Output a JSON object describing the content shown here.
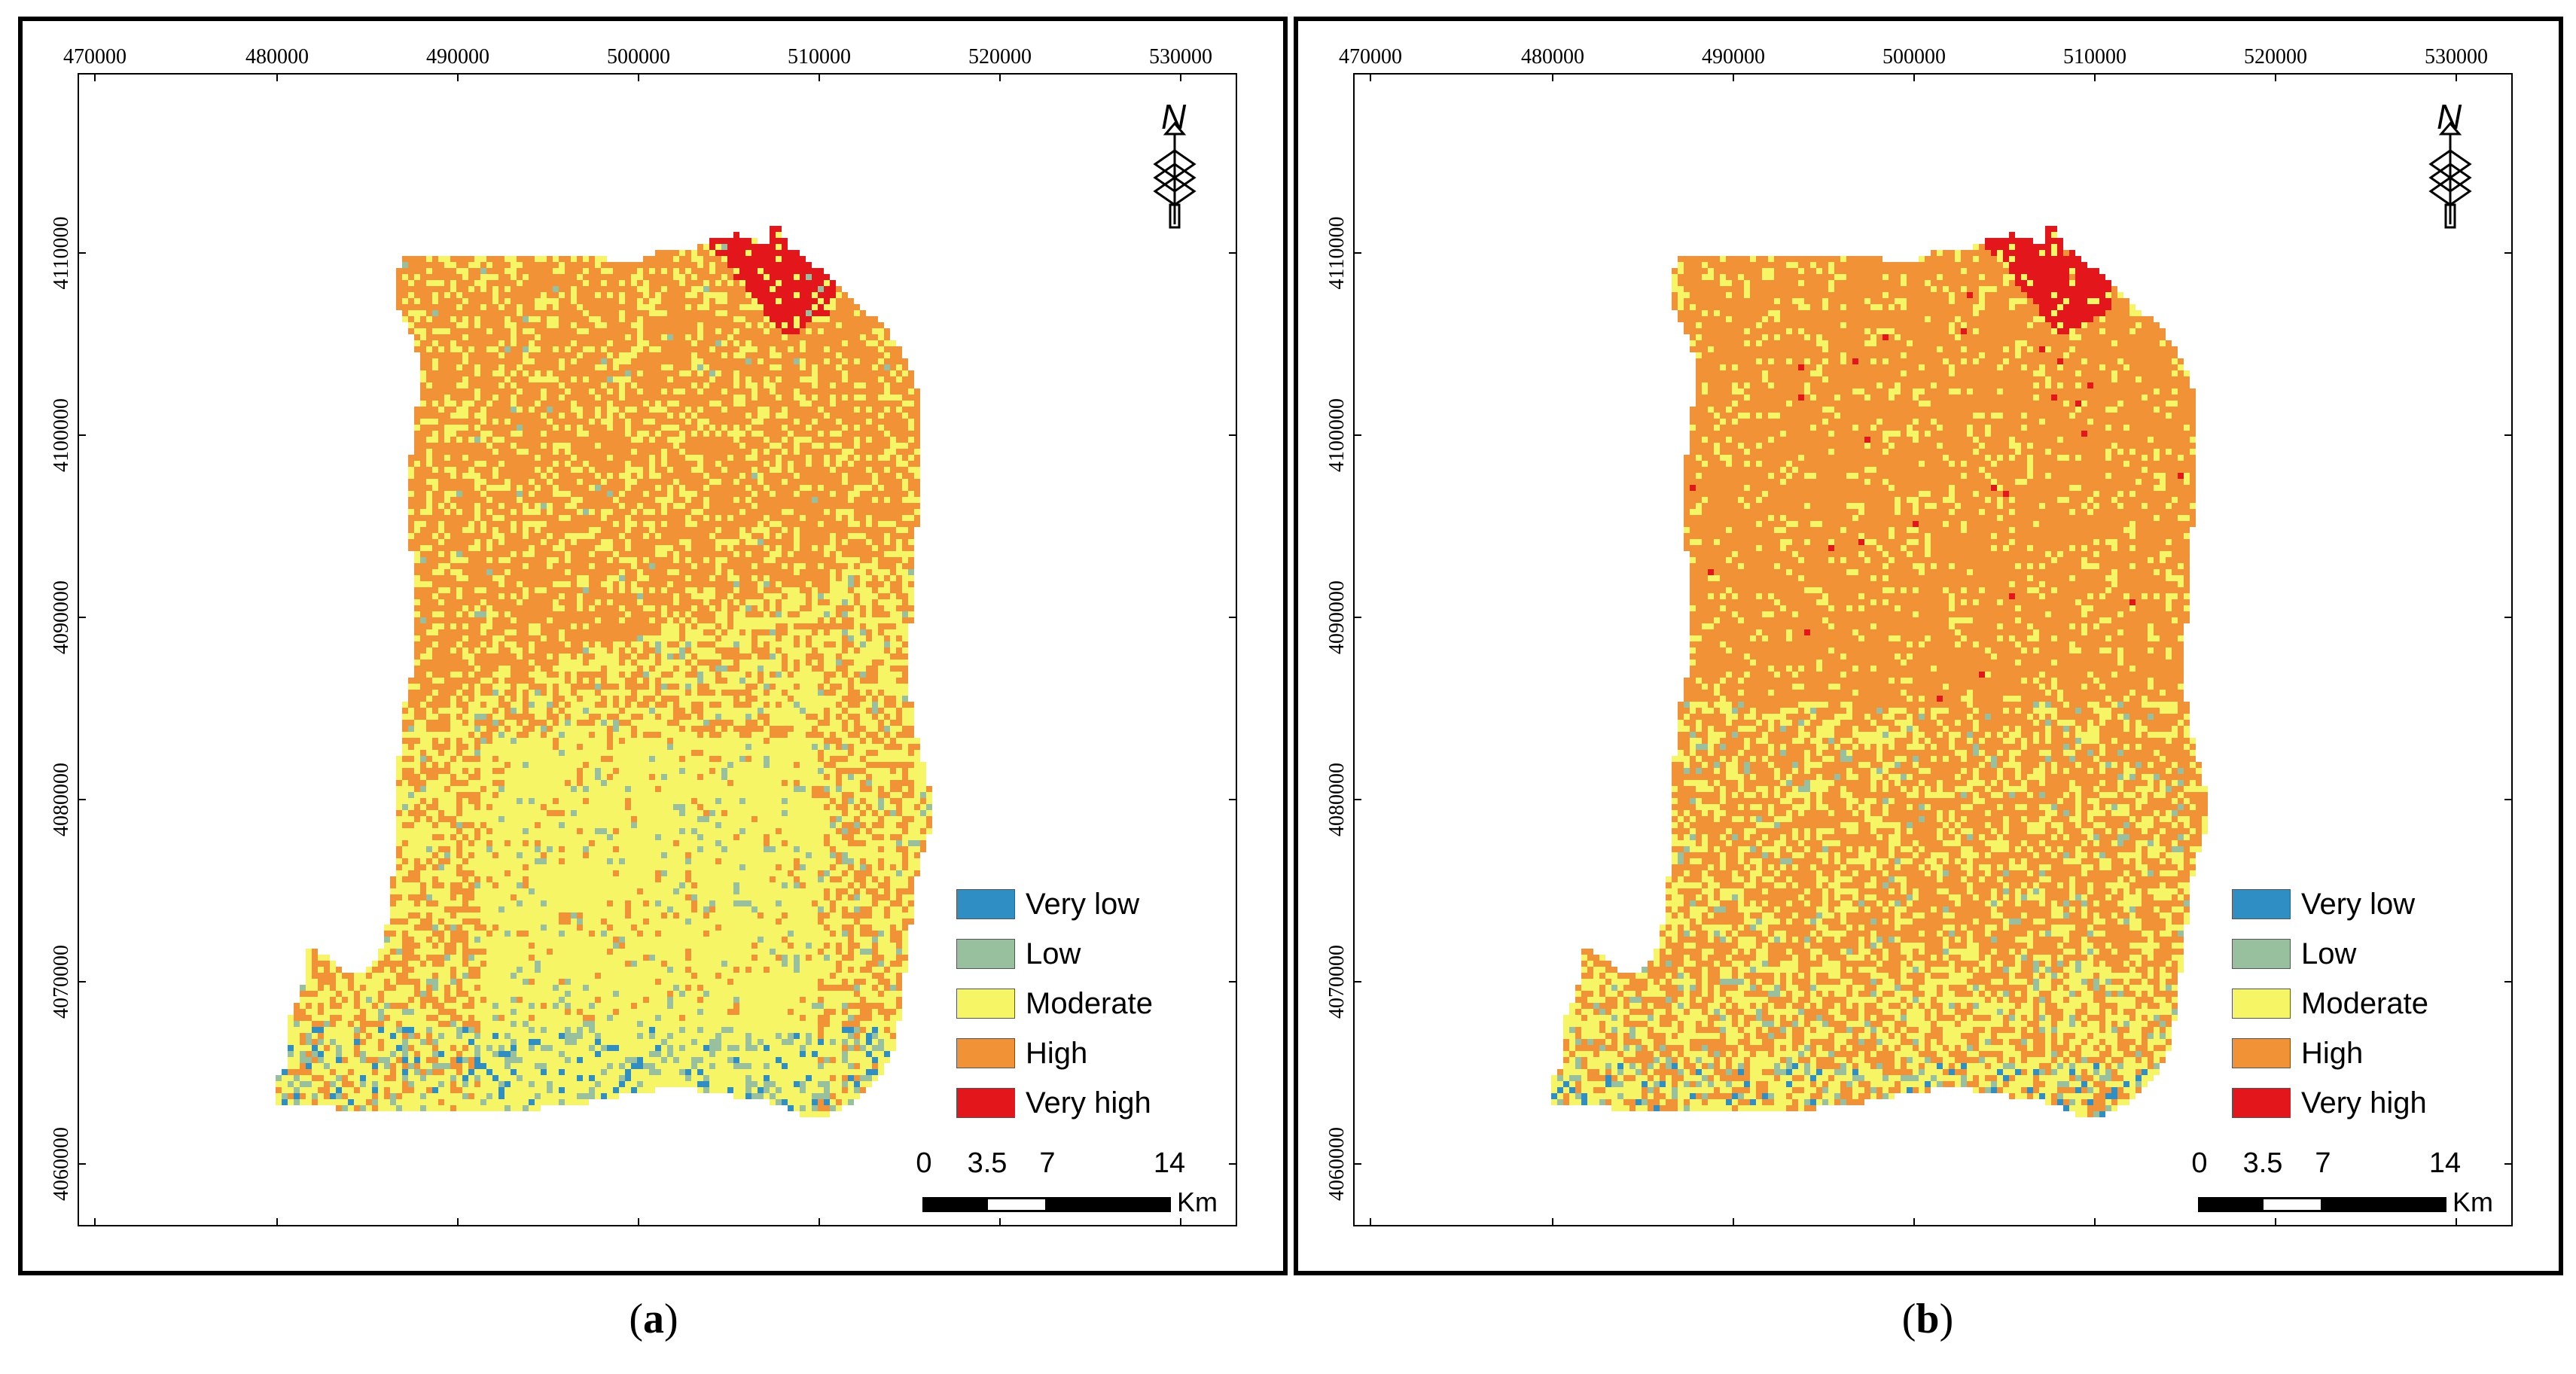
{
  "figure": {
    "panels": [
      {
        "id": "a",
        "caption_letter": "a",
        "x_ticks": [
          "470000",
          "480000",
          "490000",
          "500000",
          "510000",
          "520000",
          "530000"
        ],
        "y_ticks": [
          "4110000",
          "4100000",
          "4090000",
          "4080000",
          "4070000",
          "4060000"
        ],
        "north_label": "N",
        "scale": {
          "ticks": [
            "0",
            "3.5",
            "7",
            "14"
          ],
          "unit": "Km"
        },
        "legend": [
          {
            "label": "Very low",
            "color": "#2f8fc4"
          },
          {
            "label": "Low",
            "color": "#98c09e"
          },
          {
            "label": "Moderate",
            "color": "#f5f565"
          },
          {
            "label": "High",
            "color": "#f19236"
          },
          {
            "label": "Very high",
            "color": "#e3161b"
          }
        ],
        "pattern": "north_high_south_moderate"
      },
      {
        "id": "b",
        "caption_letter": "b",
        "x_ticks": [
          "470000",
          "480000",
          "490000",
          "500000",
          "510000",
          "520000",
          "530000"
        ],
        "y_ticks": [
          "4110000",
          "4100000",
          "4090000",
          "4080000",
          "4070000",
          "4060000"
        ],
        "north_label": "N",
        "scale": {
          "ticks": [
            "0",
            "3.5",
            "7",
            "14"
          ],
          "unit": "Km"
        },
        "legend": [
          {
            "label": "Very low",
            "color": "#2f8fc4"
          },
          {
            "label": "Low",
            "color": "#98c09e"
          },
          {
            "label": "Moderate",
            "color": "#f5f565"
          },
          {
            "label": "High",
            "color": "#f19236"
          },
          {
            "label": "Very high",
            "color": "#e3161b"
          }
        ],
        "pattern": "mostly_high"
      }
    ]
  }
}
